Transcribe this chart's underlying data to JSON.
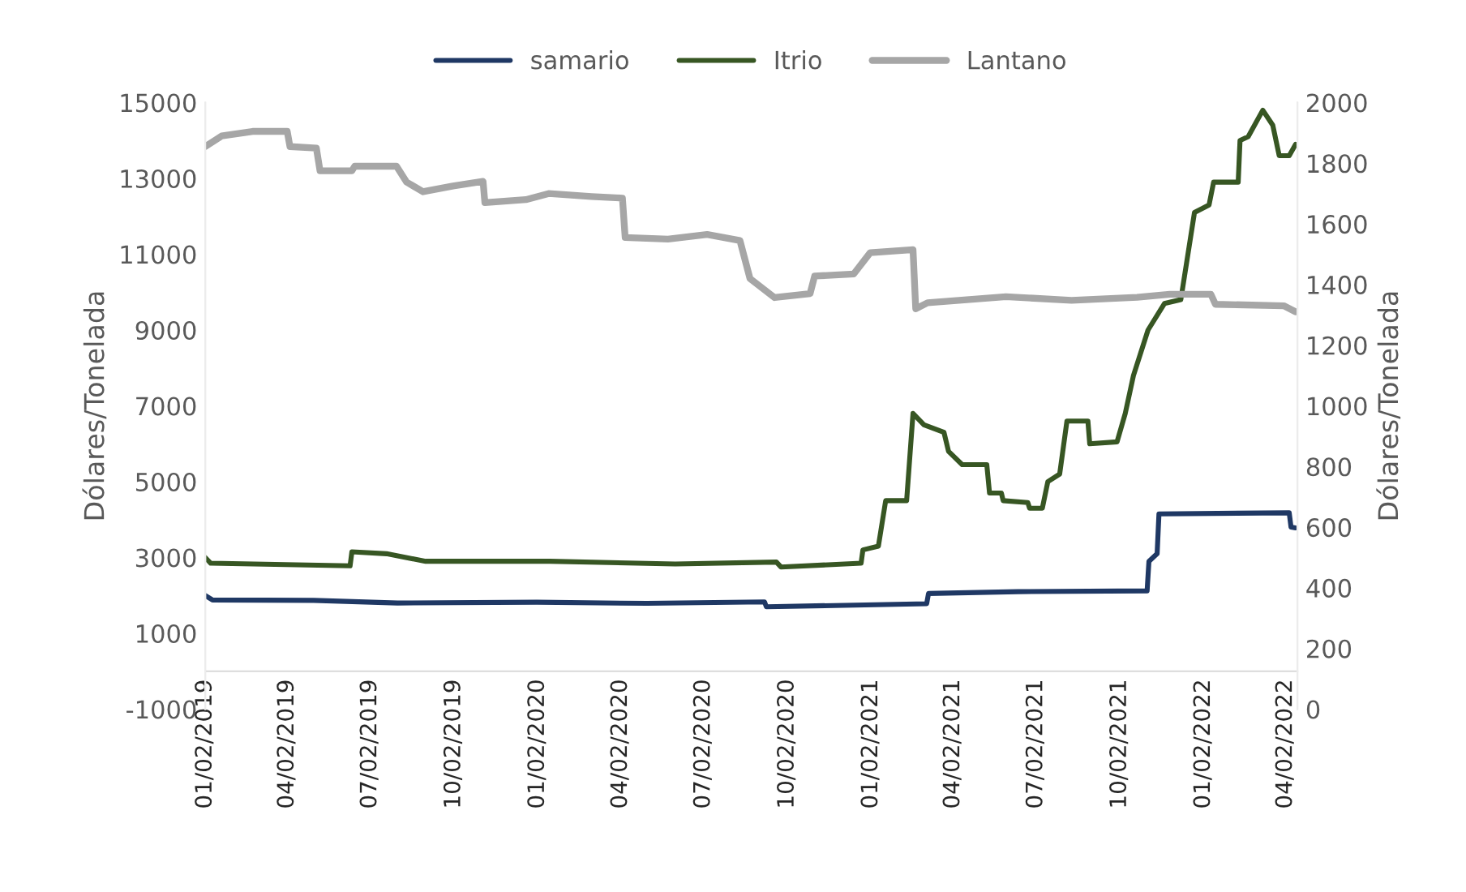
{
  "chart_data": {
    "type": "line",
    "ylabel": "Dólares/Tonelada",
    "y2label": "Dólares/Tonelada",
    "xlim": [
      "2019-01-02",
      "2022-04-15"
    ],
    "xticks": [
      {
        "value": "2019-01-02",
        "label": "01/02/2019"
      },
      {
        "value": "2019-04-02",
        "label": "04/02/2019"
      },
      {
        "value": "2019-07-02",
        "label": "07/02/2019"
      },
      {
        "value": "2019-10-02",
        "label": "10/02/2019"
      },
      {
        "value": "2020-01-02",
        "label": "01/02/2020"
      },
      {
        "value": "2020-04-02",
        "label": "04/02/2020"
      },
      {
        "value": "2020-07-02",
        "label": "07/02/2020"
      },
      {
        "value": "2020-10-02",
        "label": "10/02/2020"
      },
      {
        "value": "2021-01-02",
        "label": "01/02/2021"
      },
      {
        "value": "2021-04-02",
        "label": "04/02/2021"
      },
      {
        "value": "2021-07-02",
        "label": "07/02/2021"
      },
      {
        "value": "2021-10-02",
        "label": "10/02/2021"
      },
      {
        "value": "2022-01-02",
        "label": "01/02/2022"
      },
      {
        "value": "2022-04-02",
        "label": "04/02/2022"
      }
    ],
    "ylim": [
      -1000,
      15000
    ],
    "yticks": [
      -1000,
      1000,
      3000,
      5000,
      7000,
      9000,
      11000,
      13000,
      15000
    ],
    "y2lim": [
      0,
      2000
    ],
    "y2ticks": [
      0,
      200,
      400,
      600,
      800,
      1000,
      1200,
      1400,
      1600,
      1800,
      2000
    ],
    "grid": false,
    "legend": "top",
    "series": [
      {
        "name": "samario",
        "color": "#1f3864",
        "x": [
          "2019-01-02",
          "2019-01-10",
          "2019-05-01",
          "2019-08-01",
          "2020-01-01",
          "2020-05-01",
          "2020-09-07",
          "2020-09-09",
          "2021-03-04",
          "2021-03-06",
          "2021-06-12",
          "2021-11-01",
          "2021-11-03",
          "2021-11-12",
          "2021-11-14",
          "2022-04-06",
          "2022-04-08",
          "2022-04-13"
        ],
        "values": [
          2000,
          1880,
          1870,
          1800,
          1820,
          1790,
          1830,
          1700,
          1780,
          2050,
          2100,
          2120,
          2900,
          3100,
          4150,
          4180,
          3800,
          3780
        ]
      },
      {
        "name": "Itrio",
        "color": "#375623",
        "x": [
          "2019-01-02",
          "2019-01-08",
          "2019-06-10",
          "2019-06-12",
          "2019-07-20",
          "2019-09-01",
          "2020-01-15",
          "2020-06-01",
          "2020-09-20",
          "2020-09-25",
          "2020-12-22",
          "2020-12-24",
          "2021-01-10",
          "2021-01-18",
          "2021-02-10",
          "2021-02-17",
          "2021-03-01",
          "2021-03-23",
          "2021-03-28",
          "2021-04-12",
          "2021-05-09",
          "2021-05-12",
          "2021-05-25",
          "2021-05-27",
          "2021-06-23",
          "2021-06-25",
          "2021-07-09",
          "2021-07-15",
          "2021-07-28",
          "2021-08-05",
          "2021-08-28",
          "2021-08-30",
          "2021-09-29",
          "2021-10-08",
          "2021-10-17",
          "2021-11-02",
          "2021-11-20",
          "2021-12-08",
          "2021-12-23",
          "2022-01-08",
          "2022-01-13",
          "2022-02-09",
          "2022-02-11",
          "2022-02-20",
          "2022-03-08",
          "2022-03-19",
          "2022-03-26",
          "2022-04-06",
          "2022-04-13"
        ],
        "values": [
          3000,
          2850,
          2780,
          3150,
          3100,
          2900,
          2900,
          2830,
          2880,
          2750,
          2850,
          3200,
          3300,
          4500,
          4500,
          6800,
          6500,
          6300,
          5800,
          5450,
          5450,
          4700,
          4700,
          4500,
          4450,
          4300,
          4300,
          5000,
          5200,
          6600,
          6600,
          6000,
          6050,
          6800,
          7800,
          9000,
          9700,
          9800,
          12100,
          12300,
          12900,
          12900,
          14000,
          14100,
          14800,
          14400,
          13600,
          13600,
          13900
        ]
      },
      {
        "name": "Lantano",
        "color": "#a6a6a6",
        "axis": "y2",
        "x": [
          "2019-01-02",
          "2019-01-20",
          "2019-02-23",
          "2019-04-02",
          "2019-04-05",
          "2019-05-04",
          "2019-05-08",
          "2019-06-12",
          "2019-06-15",
          "2019-07-31",
          "2019-08-11",
          "2019-08-29",
          "2019-10-01",
          "2019-11-03",
          "2019-11-05",
          "2019-12-20",
          "2020-01-14",
          "2020-03-01",
          "2020-04-04",
          "2020-04-07",
          "2020-05-24",
          "2020-07-06",
          "2020-08-11",
          "2020-08-22",
          "2020-09-18",
          "2020-10-27",
          "2020-11-01",
          "2020-12-14",
          "2021-01-01",
          "2021-02-17",
          "2021-02-20",
          "2021-03-05",
          "2021-05-30",
          "2021-08-10",
          "2021-10-21",
          "2021-11-26",
          "2022-01-10",
          "2022-01-15",
          "2022-03-31",
          "2022-04-13"
        ],
        "values": [
          1855,
          1890,
          1905,
          1905,
          1855,
          1850,
          1775,
          1775,
          1790,
          1790,
          1738,
          1706,
          1725,
          1740,
          1670,
          1680,
          1700,
          1690,
          1685,
          1555,
          1550,
          1565,
          1545,
          1420,
          1357,
          1370,
          1428,
          1435,
          1505,
          1515,
          1320,
          1340,
          1360,
          1348,
          1358,
          1368,
          1368,
          1335,
          1330,
          1310
        ]
      }
    ]
  }
}
